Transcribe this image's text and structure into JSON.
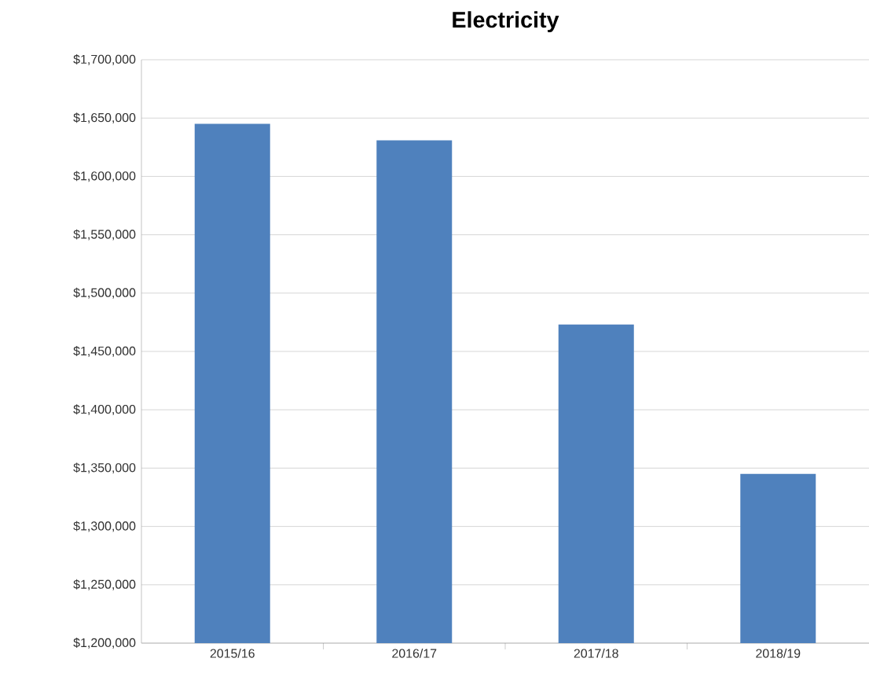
{
  "chart_data": {
    "type": "bar",
    "title": "Electricity",
    "categories": [
      "2015/16",
      "2016/17",
      "2017/18",
      "2018/19"
    ],
    "values": [
      1645000,
      1631000,
      1473000,
      1345000
    ],
    "color": "#4f81bd",
    "ylim": [
      1200000,
      1700000
    ],
    "yticks": [
      {
        "value": 1200000,
        "label": "$1,200,000"
      },
      {
        "value": 1250000,
        "label": "$1,250,000"
      },
      {
        "value": 1300000,
        "label": "$1,300,000"
      },
      {
        "value": 1350000,
        "label": "$1,350,000"
      },
      {
        "value": 1400000,
        "label": "$1,400,000"
      },
      {
        "value": 1450000,
        "label": "$1,450,000"
      },
      {
        "value": 1500000,
        "label": "$1,500,000"
      },
      {
        "value": 1550000,
        "label": "$1,550,000"
      },
      {
        "value": 1600000,
        "label": "$1,600,000"
      },
      {
        "value": 1650000,
        "label": "$1,650,000"
      },
      {
        "value": 1700000,
        "label": "$1,700,000"
      }
    ],
    "grid": "y"
  }
}
